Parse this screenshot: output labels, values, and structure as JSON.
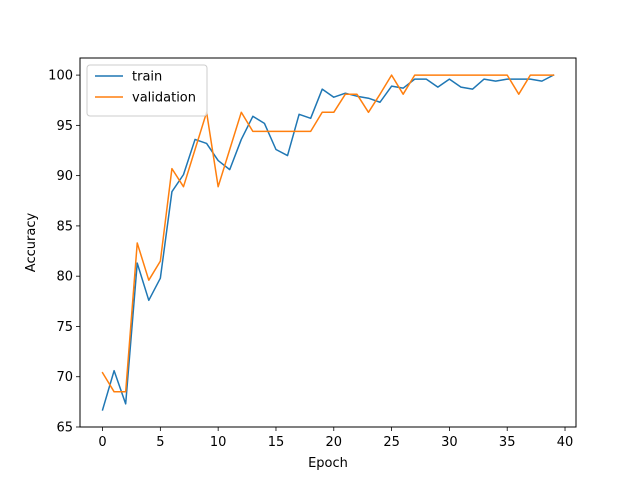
{
  "chart_data": {
    "type": "line",
    "xlabel": "Epoch",
    "ylabel": "Accuracy",
    "xlim": [
      -1.95,
      40.95
    ],
    "ylim": [
      65,
      101.7
    ],
    "xticks": [
      0,
      5,
      10,
      15,
      20,
      25,
      30,
      35,
      40
    ],
    "yticks": [
      65,
      70,
      75,
      80,
      85,
      90,
      95,
      100
    ],
    "grid": false,
    "legend_position": "upper-left",
    "x": [
      0,
      1,
      2,
      3,
      4,
      5,
      6,
      7,
      8,
      9,
      10,
      11,
      12,
      13,
      14,
      15,
      16,
      17,
      18,
      19,
      20,
      21,
      22,
      23,
      24,
      25,
      26,
      27,
      28,
      29,
      30,
      31,
      32,
      33,
      34,
      35,
      36,
      37,
      38,
      39
    ],
    "series": [
      {
        "name": "train",
        "color": "#1f77b4",
        "values": [
          66.7,
          70.6,
          67.3,
          81.3,
          77.6,
          79.8,
          88.4,
          90.1,
          93.6,
          93.2,
          91.5,
          90.6,
          93.6,
          95.9,
          95.2,
          92.6,
          92.0,
          96.1,
          95.7,
          98.6,
          97.8,
          98.2,
          97.9,
          97.7,
          97.3,
          98.9,
          98.7,
          99.6,
          99.6,
          98.8,
          99.6,
          98.8,
          98.6,
          99.6,
          99.4,
          99.6,
          99.6,
          99.6,
          99.4,
          100.0
        ]
      },
      {
        "name": "validation",
        "color": "#ff7f0e",
        "values": [
          70.4,
          68.5,
          68.5,
          83.3,
          79.6,
          81.5,
          90.7,
          88.9,
          92.6,
          96.3,
          88.9,
          92.6,
          96.3,
          94.4,
          94.4,
          94.4,
          94.4,
          94.4,
          94.4,
          96.3,
          96.3,
          98.1,
          98.1,
          96.3,
          98.1,
          100.0,
          98.1,
          100.0,
          100.0,
          100.0,
          100.0,
          100.0,
          100.0,
          100.0,
          100.0,
          100.0,
          98.1,
          100.0,
          100.0,
          100.0
        ]
      }
    ]
  }
}
